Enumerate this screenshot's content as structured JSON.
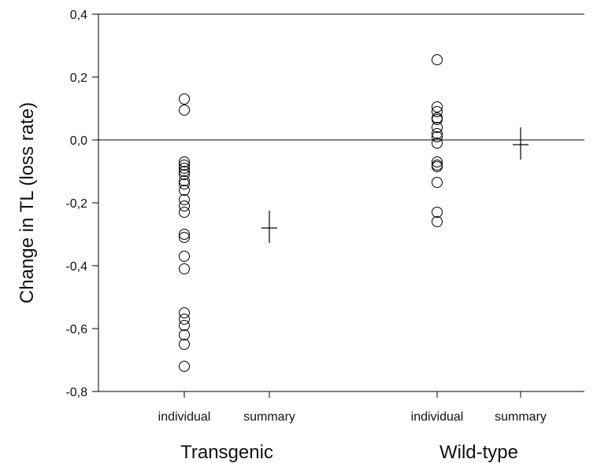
{
  "chart_data": {
    "type": "scatter",
    "ylabel": "Change in TL (loss rate)",
    "ylim": [
      -0.8,
      0.4
    ],
    "yticks": [
      "-0,8",
      "-0,6",
      "-0,4",
      "-0,2",
      "0,0",
      "0,2",
      "0,4"
    ],
    "yticks_values": [
      -0.8,
      -0.6,
      -0.4,
      -0.2,
      0.0,
      0.2,
      0.4
    ],
    "reference_line": 0.0,
    "categories": [
      {
        "group": "Transgenic",
        "label": "individual"
      },
      {
        "group": "Transgenic",
        "label": "summary"
      },
      {
        "group": "Wild-type",
        "label": "individual"
      },
      {
        "group": "Wild-type",
        "label": "summary"
      }
    ],
    "groups": [
      "Transgenic",
      "Wild-type"
    ],
    "series": [
      {
        "category_index": 0,
        "marker": "circle",
        "values": [
          0.13,
          0.095,
          -0.07,
          -0.08,
          -0.09,
          -0.1,
          -0.11,
          -0.13,
          -0.14,
          -0.16,
          -0.19,
          -0.21,
          -0.23,
          -0.3,
          -0.31,
          -0.37,
          -0.41,
          -0.55,
          -0.57,
          -0.59,
          -0.62,
          -0.65,
          -0.72
        ]
      },
      {
        "category_index": 1,
        "marker": "cross",
        "values": [
          -0.28
        ]
      },
      {
        "category_index": 2,
        "marker": "circle",
        "values": [
          0.255,
          0.105,
          0.09,
          0.07,
          0.065,
          0.04,
          0.02,
          0.01,
          -0.01,
          -0.07,
          -0.08,
          -0.085,
          -0.135,
          -0.23,
          -0.26
        ]
      },
      {
        "category_index": 3,
        "marker": "cross",
        "values": [
          -0.015
        ]
      }
    ]
  }
}
